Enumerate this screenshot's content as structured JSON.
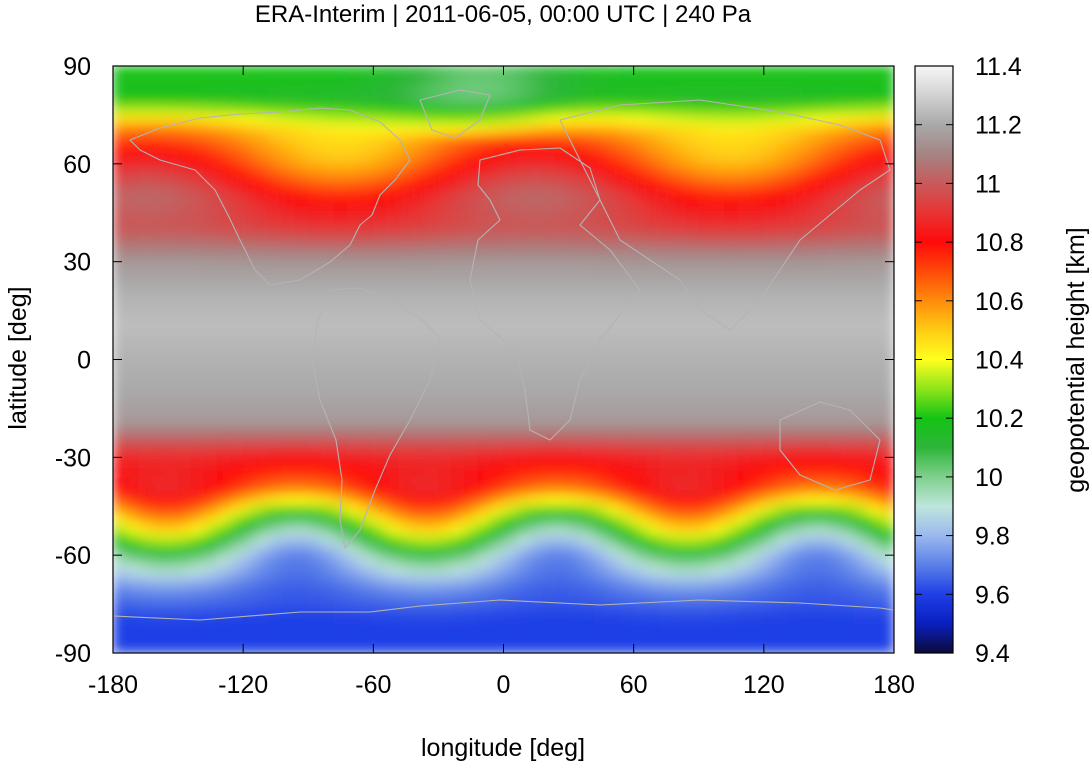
{
  "chart_data": {
    "type": "heatmap",
    "title": "ERA-Interim | 2011-06-05, 00:00 UTC | 240 Pa",
    "xlabel": "longitude [deg]",
    "ylabel": "latitude [deg]",
    "colorbar_label": "geopotential height [km]",
    "xlim": [
      -180,
      180
    ],
    "ylim": [
      -90,
      90
    ],
    "clim": [
      9.4,
      11.4
    ],
    "xticks": [
      -180,
      -120,
      -60,
      0,
      60,
      120,
      180
    ],
    "yticks": [
      90,
      60,
      30,
      0,
      -30,
      -60,
      -90
    ],
    "cticks": [
      "11.4",
      "11.2",
      "11",
      "10.8",
      "10.6",
      "10.4",
      "10.2",
      "10",
      "9.8",
      "9.6",
      "9.4"
    ],
    "colormap": [
      {
        "value": 9.4,
        "color": "#0b0b3a"
      },
      {
        "value": 9.5,
        "color": "#0a1fbf"
      },
      {
        "value": 9.6,
        "color": "#1f3fe6"
      },
      {
        "value": 9.7,
        "color": "#5a80e8"
      },
      {
        "value": 9.8,
        "color": "#9bb8ee"
      },
      {
        "value": 9.9,
        "color": "#bfe6dc"
      },
      {
        "value": 10.0,
        "color": "#7fd08c"
      },
      {
        "value": 10.1,
        "color": "#2fb53a"
      },
      {
        "value": 10.2,
        "color": "#14c414"
      },
      {
        "value": 10.3,
        "color": "#8ee41a"
      },
      {
        "value": 10.4,
        "color": "#ffff1e"
      },
      {
        "value": 10.5,
        "color": "#ffcc14"
      },
      {
        "value": 10.6,
        "color": "#ff8c0c"
      },
      {
        "value": 10.7,
        "color": "#ff4a08"
      },
      {
        "value": 10.8,
        "color": "#ff0a0a"
      },
      {
        "value": 10.9,
        "color": "#e83434"
      },
      {
        "value": 11.0,
        "color": "#c85a5a"
      },
      {
        "value": 11.1,
        "color": "#a58484"
      },
      {
        "value": 11.2,
        "color": "#a9a9a9"
      },
      {
        "value": 11.3,
        "color": "#d2d2d2"
      },
      {
        "value": 11.4,
        "color": "#f6f6f6"
      }
    ],
    "data_profile_by_latitude": {
      "lat": [
        90,
        80,
        70,
        60,
        50,
        40,
        30,
        20,
        10,
        0,
        -10,
        -20,
        -30,
        -40,
        -50,
        -60,
        -70,
        -80,
        -90
      ],
      "value": [
        10.2,
        10.15,
        10.55,
        10.7,
        10.9,
        10.95,
        11.15,
        11.22,
        11.25,
        11.22,
        11.2,
        11.15,
        10.85,
        10.75,
        10.3,
        9.9,
        9.7,
        9.6,
        9.6
      ]
    },
    "coastline_color": "#b4b4b4"
  }
}
